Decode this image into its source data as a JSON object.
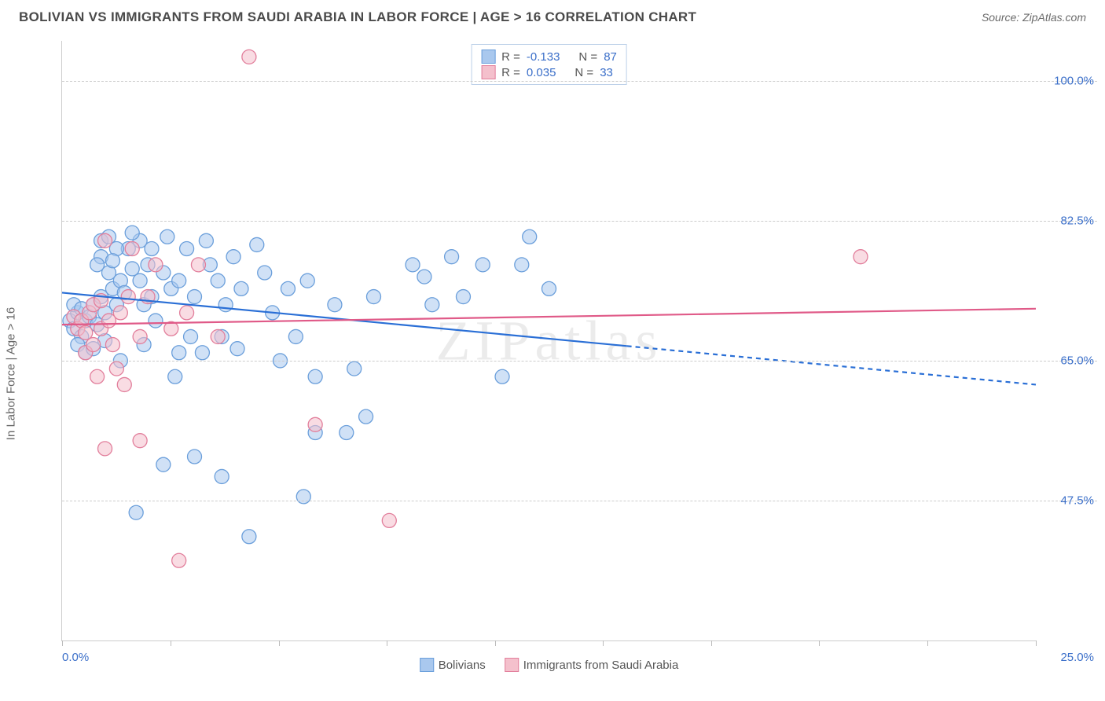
{
  "header": {
    "title": "BOLIVIAN VS IMMIGRANTS FROM SAUDI ARABIA IN LABOR FORCE | AGE > 16 CORRELATION CHART",
    "source_label": "Source: ZipAtlas.com"
  },
  "chart": {
    "type": "scatter",
    "ylabel": "In Labor Force | Age > 16",
    "xlim": [
      0,
      25
    ],
    "ylim": [
      30,
      105
    ],
    "y_gridlines": [
      47.5,
      65.0,
      82.5,
      100.0
    ],
    "y_tick_labels": [
      "47.5%",
      "65.0%",
      "82.5%",
      "100.0%"
    ],
    "x_ticks": [
      0,
      2.78,
      5.56,
      8.33,
      11.11,
      13.89,
      16.67,
      19.44,
      22.22,
      25
    ],
    "x_tick_labels": {
      "left": "0.0%",
      "right": "25.0%"
    },
    "background_color": "#ffffff",
    "grid_color": "#cccccc",
    "marker_radius": 9,
    "marker_stroke_width": 1.3,
    "marker_opacity": 0.55,
    "line_width": 2.2,
    "watermark": "ZIPatlas",
    "series": [
      {
        "name": "Bolivians",
        "fill_color": "#a9c8ee",
        "stroke_color": "#6b9fdb",
        "line_color": "#2a6fd6",
        "r_value": "-0.133",
        "n_value": "87",
        "regression": {
          "y_at_xmin": 73.5,
          "y_at_xmax": 62.0,
          "dash_from_x": 14.5
        },
        "points": [
          [
            0.2,
            70
          ],
          [
            0.3,
            69
          ],
          [
            0.4,
            71
          ],
          [
            0.5,
            68
          ],
          [
            0.3,
            72
          ],
          [
            0.6,
            70
          ],
          [
            0.5,
            71.5
          ],
          [
            0.7,
            70.5
          ],
          [
            0.8,
            72
          ],
          [
            0.9,
            69.5
          ],
          [
            1.0,
            73
          ],
          [
            1.1,
            71
          ],
          [
            1.0,
            78
          ],
          [
            1.2,
            76
          ],
          [
            1.0,
            80
          ],
          [
            1.3,
            74
          ],
          [
            1.4,
            72
          ],
          [
            1.2,
            80.5
          ],
          [
            1.5,
            75
          ],
          [
            1.6,
            73.5
          ],
          [
            1.8,
            76.5
          ],
          [
            1.7,
            79
          ],
          [
            2.0,
            75
          ],
          [
            2.1,
            72
          ],
          [
            2.0,
            80
          ],
          [
            2.2,
            77
          ],
          [
            2.3,
            73
          ],
          [
            2.4,
            70
          ],
          [
            2.6,
            76
          ],
          [
            2.8,
            74
          ],
          [
            2.7,
            80.5
          ],
          [
            3.0,
            66
          ],
          [
            3.0,
            75
          ],
          [
            3.2,
            79
          ],
          [
            3.4,
            73
          ],
          [
            3.8,
            77
          ],
          [
            3.7,
            80
          ],
          [
            4.0,
            75
          ],
          [
            4.2,
            72
          ],
          [
            4.4,
            78
          ],
          [
            4.5,
            66.5
          ],
          [
            4.6,
            74
          ],
          [
            5.0,
            79.5
          ],
          [
            5.2,
            76
          ],
          [
            5.4,
            71
          ],
          [
            5.6,
            65
          ],
          [
            5.8,
            74
          ],
          [
            6.0,
            68
          ],
          [
            6.3,
            75
          ],
          [
            6.5,
            63
          ],
          [
            7.0,
            72
          ],
          [
            7.3,
            56
          ],
          [
            7.5,
            64
          ],
          [
            7.8,
            58
          ],
          [
            8.0,
            73
          ],
          [
            9.0,
            77
          ],
          [
            9.3,
            75.5
          ],
          [
            9.5,
            72
          ],
          [
            10.0,
            78
          ],
          [
            10.3,
            73
          ],
          [
            10.8,
            77
          ],
          [
            11.3,
            63
          ],
          [
            11.8,
            77
          ],
          [
            12.0,
            80.5
          ],
          [
            12.5,
            74
          ],
          [
            2.6,
            52
          ],
          [
            3.4,
            53
          ],
          [
            4.1,
            50.5
          ],
          [
            4.8,
            43
          ],
          [
            6.2,
            48
          ],
          [
            6.5,
            56
          ],
          [
            1.9,
            46
          ],
          [
            2.1,
            67
          ],
          [
            3.3,
            68
          ],
          [
            4.1,
            68
          ],
          [
            3.6,
            66
          ],
          [
            2.9,
            63
          ],
          [
            0.4,
            67
          ],
          [
            0.6,
            66
          ],
          [
            0.8,
            66.5
          ],
          [
            1.1,
            67.5
          ],
          [
            1.5,
            65
          ],
          [
            2.3,
            79
          ],
          [
            1.8,
            81
          ],
          [
            0.9,
            77
          ],
          [
            1.4,
            79
          ],
          [
            1.3,
            77.5
          ]
        ]
      },
      {
        "name": "Immigrants from Saudi Arabia",
        "fill_color": "#f4c0cc",
        "stroke_color": "#e27f9c",
        "line_color": "#e05a88",
        "r_value": "0.035",
        "n_value": "33",
        "regression": {
          "y_at_xmin": 69.5,
          "y_at_xmax": 71.5,
          "dash_from_x": null
        },
        "points": [
          [
            0.3,
            70.5
          ],
          [
            0.4,
            69
          ],
          [
            0.5,
            70
          ],
          [
            0.6,
            68.5
          ],
          [
            0.7,
            71
          ],
          [
            0.6,
            66
          ],
          [
            0.8,
            67
          ],
          [
            0.9,
            63
          ],
          [
            1.0,
            69
          ],
          [
            1.1,
            80
          ],
          [
            1.2,
            70
          ],
          [
            1.3,
            67
          ],
          [
            1.4,
            64
          ],
          [
            1.5,
            71
          ],
          [
            1.6,
            62
          ],
          [
            1.8,
            79
          ],
          [
            2.0,
            68
          ],
          [
            2.2,
            73
          ],
          [
            2.4,
            77
          ],
          [
            2.8,
            69
          ],
          [
            3.2,
            71
          ],
          [
            3.5,
            77
          ],
          [
            4.0,
            68
          ],
          [
            4.8,
            103
          ],
          [
            1.1,
            54
          ],
          [
            2.0,
            55
          ],
          [
            3.0,
            40
          ],
          [
            6.5,
            57
          ],
          [
            8.4,
            45
          ],
          [
            20.5,
            78
          ],
          [
            0.8,
            72
          ],
          [
            1.0,
            72.5
          ],
          [
            1.7,
            73
          ]
        ]
      }
    ]
  },
  "correlation_box": {
    "rows": [
      {
        "swatch_fill": "#a9c8ee",
        "swatch_stroke": "#6b9fdb",
        "r_label": "R =",
        "r_val": "-0.133",
        "n_label": "N =",
        "n_val": "87"
      },
      {
        "swatch_fill": "#f4c0cc",
        "swatch_stroke": "#e27f9c",
        "r_label": "R =",
        "r_val": "0.035",
        "n_label": "N =",
        "n_val": "33"
      }
    ]
  },
  "bottom_legend": {
    "items": [
      {
        "swatch_fill": "#a9c8ee",
        "swatch_stroke": "#6b9fdb",
        "label": "Bolivians"
      },
      {
        "swatch_fill": "#f4c0cc",
        "swatch_stroke": "#e27f9c",
        "label": "Immigrants from Saudi Arabia"
      }
    ]
  }
}
